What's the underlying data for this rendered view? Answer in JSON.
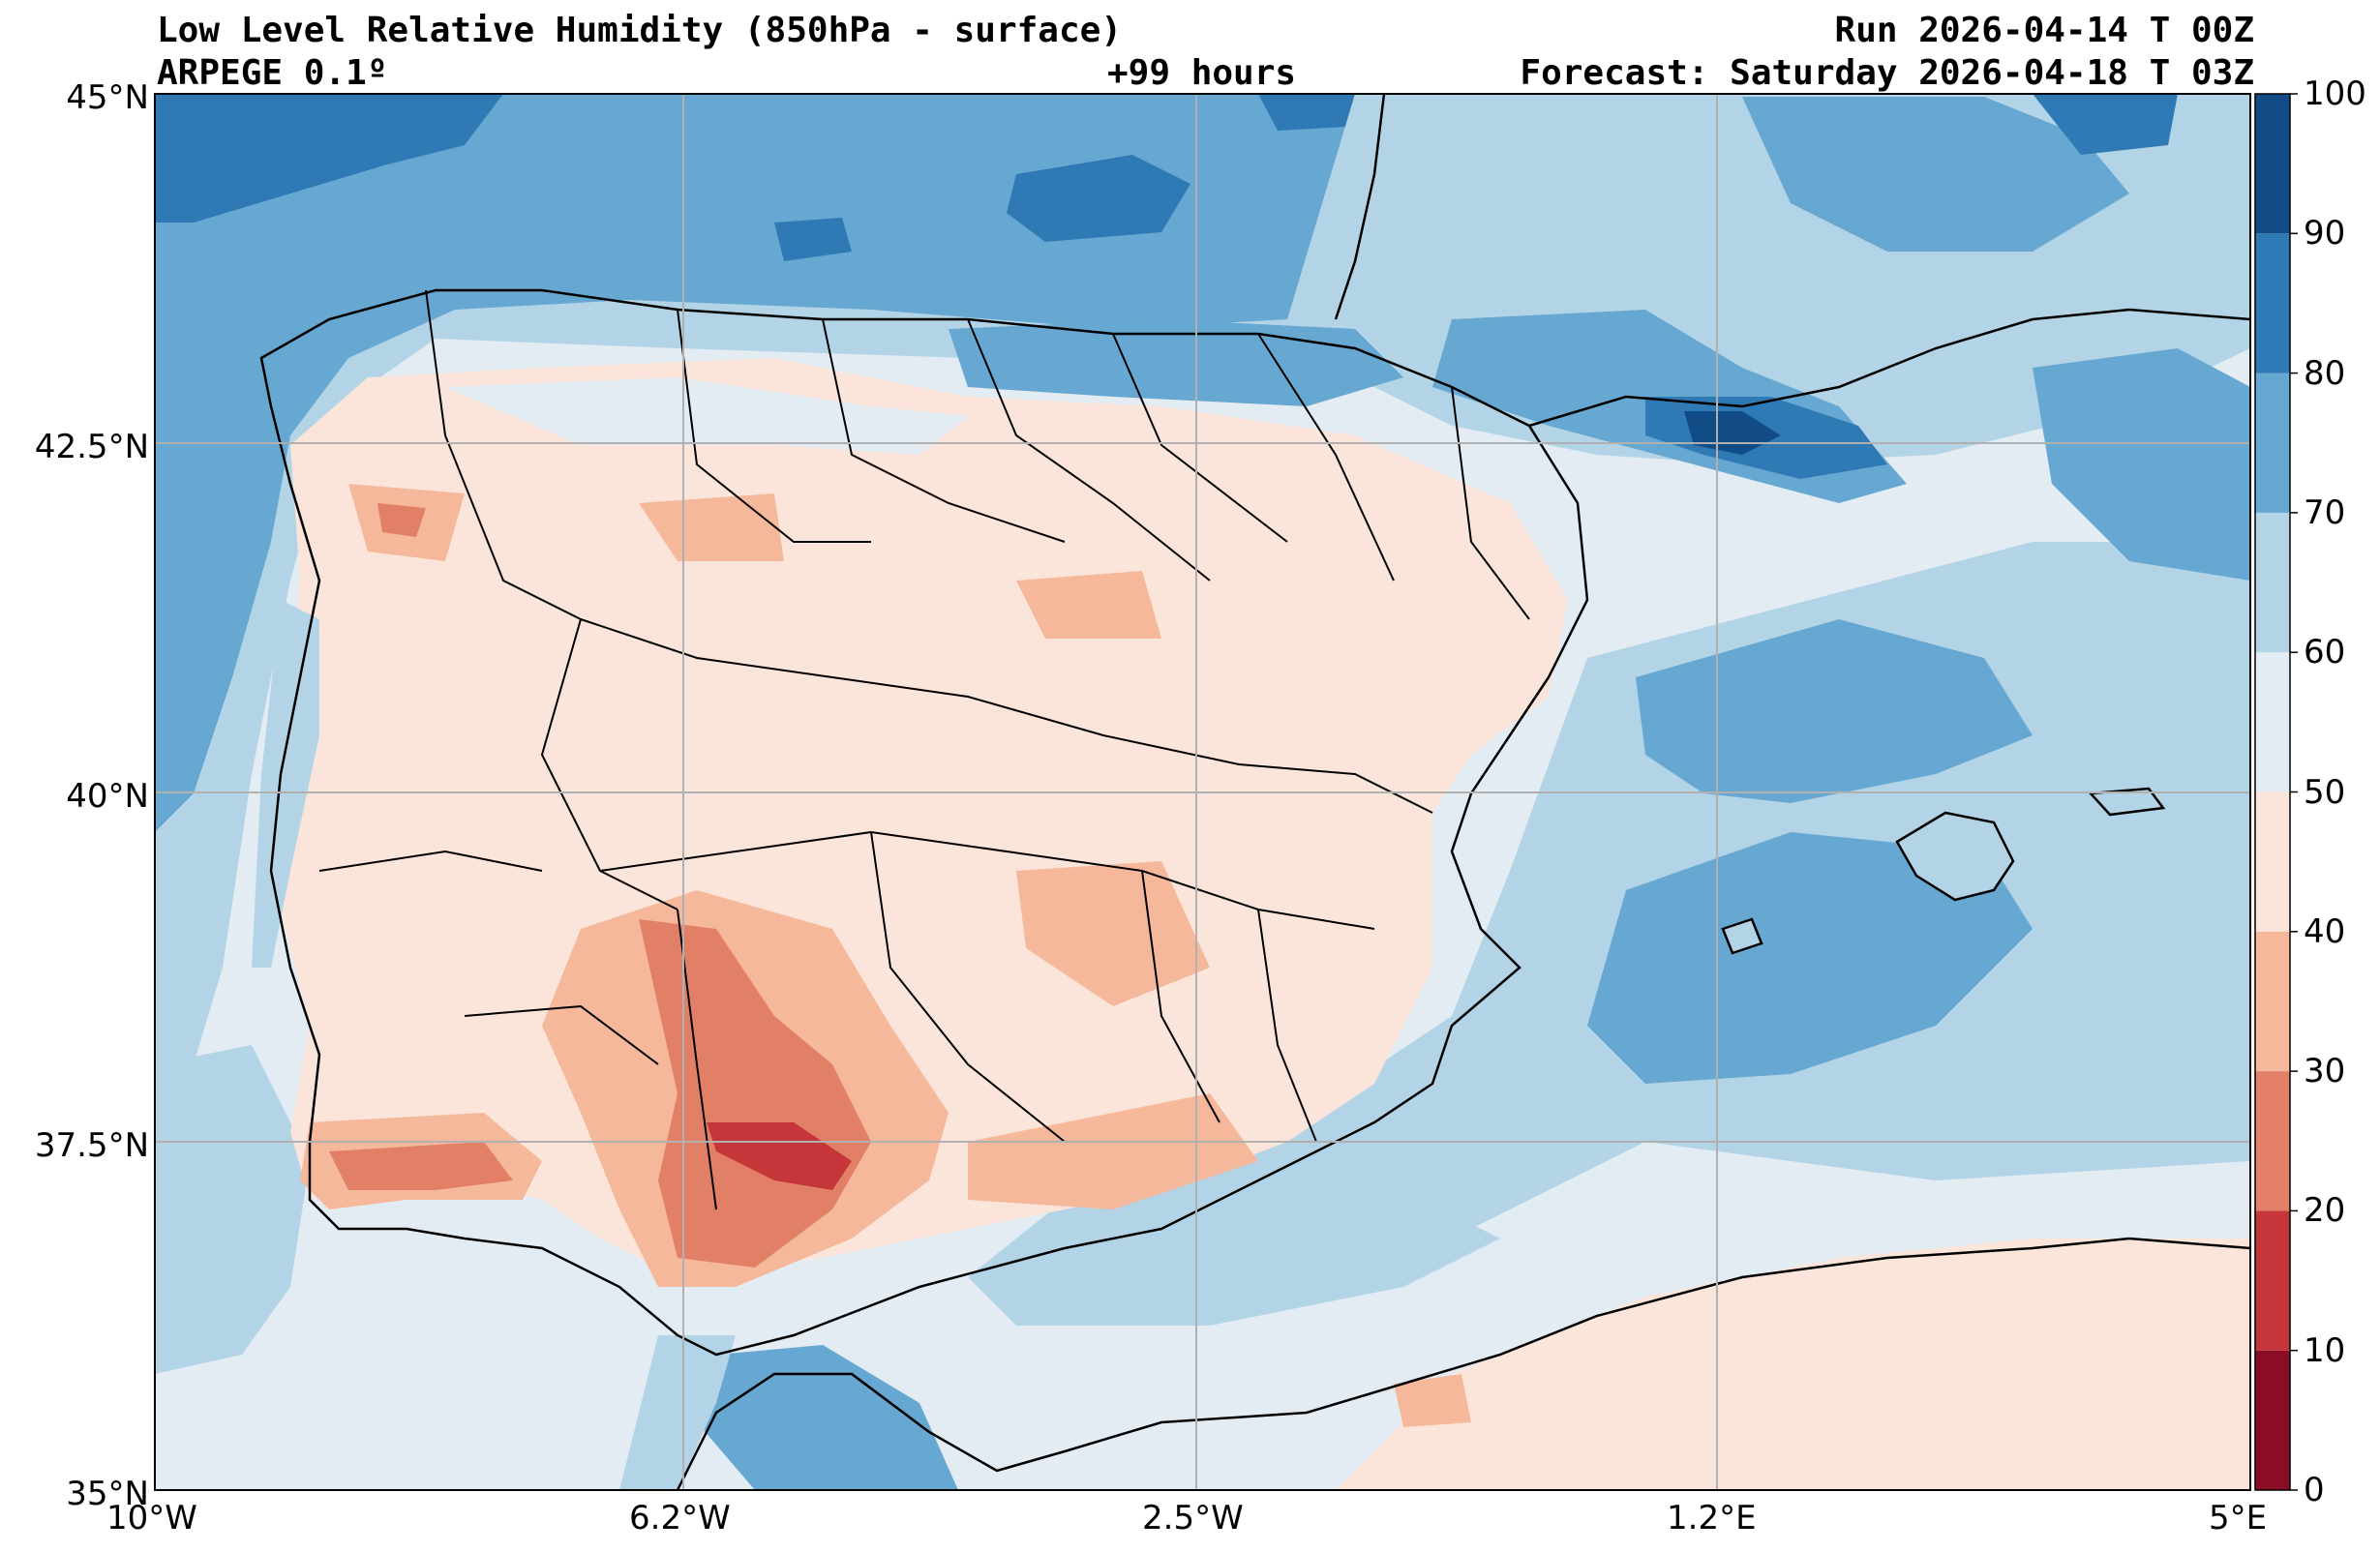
{
  "header": {
    "title": "Low Level Relative Humidity (850hPa - surface)",
    "model": "ARPEGE 0.1º",
    "lead_time": "+99 hours",
    "run": "Run 2026-04-14 T 00Z",
    "forecast": "Forecast: Saturday 2026-04-18 T 03Z"
  },
  "axes": {
    "lon_ticks": [
      "10°W",
      "6.2°W",
      "2.5°W",
      "1.2°E",
      "5°E"
    ],
    "lat_ticks": [
      "45°N",
      "42.5°N",
      "40°N",
      "37.5°N",
      "35°N"
    ]
  },
  "colorbar": {
    "ticks": [
      "100",
      "90",
      "80",
      "70",
      "60",
      "50",
      "40",
      "30",
      "20",
      "10",
      "0"
    ],
    "bands": [
      {
        "range": "0-10",
        "color": "#8a0c25"
      },
      {
        "range": "10-20",
        "color": "#c4363a"
      },
      {
        "range": "20-30",
        "color": "#e27f67"
      },
      {
        "range": "30-40",
        "color": "#f6b89b"
      },
      {
        "range": "40-50",
        "color": "#fbe5da"
      },
      {
        "range": "50-60",
        "color": "#e4ecf3"
      },
      {
        "range": "60-70",
        "color": "#b3d4e7"
      },
      {
        "range": "70-80",
        "color": "#66a8d1"
      },
      {
        "range": "80-90",
        "color": "#2f79b5"
      },
      {
        "range": "90-100",
        "color": "#124c87"
      }
    ]
  },
  "colors": {
    "land_base": "#fbe5da",
    "sea_base": "#e4ecf3",
    "grid": "#b0b0b0",
    "coast": "#000000"
  }
}
